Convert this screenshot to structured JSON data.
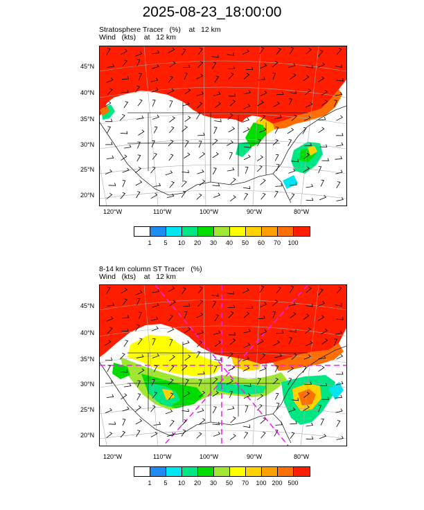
{
  "title": "2025-08-23_18:00:00",
  "panels": [
    {
      "line1": "Stratosphere Tracer   (%)    at   12 km",
      "line2": "Wind   (kts)    at   12 km",
      "lat_labels": [
        "45°N",
        "40°N",
        "35°N",
        "30°N",
        "25°N",
        "20°N"
      ],
      "lon_labels": [
        "120°W",
        "110°W",
        "100°W",
        "90°W",
        "80°W"
      ],
      "colorbar_labels": [
        "1",
        "5",
        "10",
        "20",
        "30",
        "40",
        "50",
        "60",
        "70",
        "100"
      ],
      "colorbar_colors": [
        "#ffffff",
        "#1e8cf0",
        "#00e6f0",
        "#00e682",
        "#00dc00",
        "#a0e632",
        "#ffff00",
        "#ffd200",
        "#ffa000",
        "#ff6e00",
        "#ff1e00"
      ]
    },
    {
      "line1": "8-14 km column ST Tracer   (%)",
      "line2": "Wind   (kts)    at   12 km",
      "lat_labels": [
        "45°N",
        "40°N",
        "35°N",
        "30°N",
        "25°N",
        "20°N"
      ],
      "lon_labels": [
        "120°W",
        "110°W",
        "100°W",
        "90°W",
        "80°W"
      ],
      "colorbar_labels": [
        "1",
        "5",
        "10",
        "20",
        "30",
        "50",
        "70",
        "100",
        "200",
        "500"
      ],
      "colorbar_colors": [
        "#ffffff",
        "#1e8cf0",
        "#00e6f0",
        "#00e682",
        "#00dc00",
        "#a0e632",
        "#ffff00",
        "#ffd200",
        "#ffa000",
        "#ff6e00",
        "#ff1e00"
      ]
    }
  ]
}
